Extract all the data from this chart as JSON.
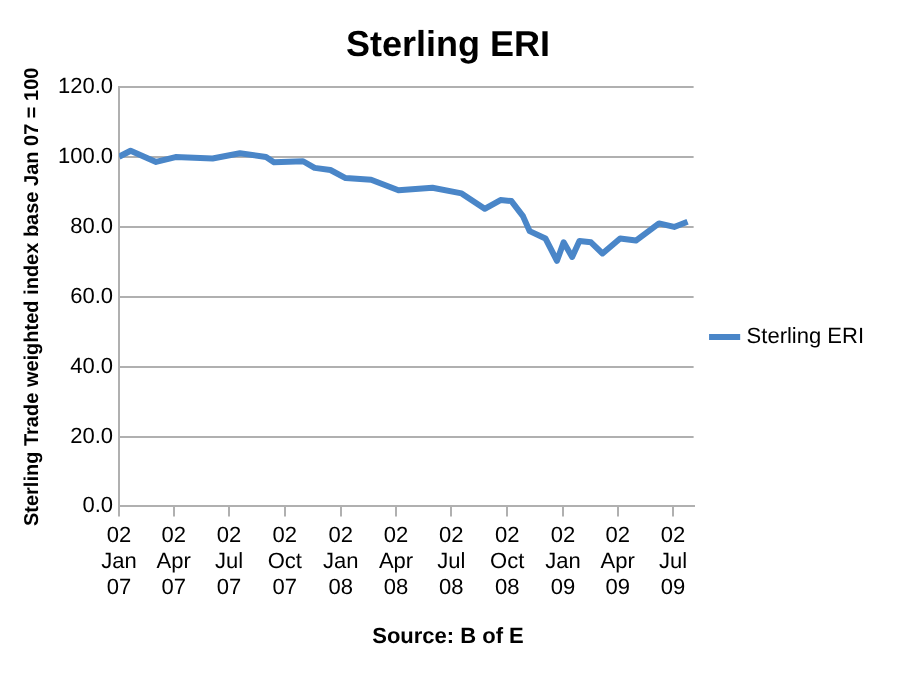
{
  "chart_data": {
    "type": "line",
    "title": "Sterling ERI",
    "ylabel": "Sterling Trade weighted index base Jan 07 = 100",
    "annotations": [
      "Source: B of E"
    ],
    "series": [
      {
        "name": "Sterling ERI",
        "color": "#4a86c8",
        "x": [
          "2007-01-02",
          "2007-01-21",
          "2007-03-04",
          "2007-04-05",
          "2007-06-05",
          "2007-07-20",
          "2007-09-01",
          "2007-09-14",
          "2007-11-01",
          "2007-11-20",
          "2007-12-16",
          "2008-01-10",
          "2008-02-21",
          "2008-04-06",
          "2008-06-01",
          "2008-07-19",
          "2008-08-26",
          "2008-09-21",
          "2008-10-09",
          "2008-10-28",
          "2008-11-08",
          "2008-12-04",
          "2008-12-23",
          "2009-01-03",
          "2009-01-17",
          "2009-01-29",
          "2009-02-17",
          "2009-03-08",
          "2009-04-06",
          "2009-05-02",
          "2009-06-09",
          "2009-07-04",
          "2009-07-26"
        ],
        "values": [
          100.1,
          101.8,
          98.6,
          100,
          99.6,
          101.1,
          100,
          98.5,
          98.8,
          96.9,
          96.3,
          94,
          93.5,
          90.5,
          91.2,
          89.6,
          85.2,
          87.7,
          87.4,
          83.1,
          78.8,
          76.7,
          70.3,
          75.6,
          71.4,
          76,
          75.6,
          72.4,
          76.7,
          76.1,
          81,
          80,
          81.5
        ]
      }
    ],
    "xlim": [
      "2007-01-02",
      "2009-08-05"
    ],
    "xticks": [
      {
        "value": "2007-01-02",
        "label": "02 Jan 07"
      },
      {
        "value": "2007-04-02",
        "label": "02 Apr 07"
      },
      {
        "value": "2007-07-02",
        "label": "02 Jul 07"
      },
      {
        "value": "2007-10-02",
        "label": "02 Oct 07"
      },
      {
        "value": "2008-01-02",
        "label": "02 Jan 08"
      },
      {
        "value": "2008-04-02",
        "label": "02 Apr 08"
      },
      {
        "value": "2008-07-02",
        "label": "02 Jul 08"
      },
      {
        "value": "2008-10-02",
        "label": "02 Oct 08"
      },
      {
        "value": "2009-01-02",
        "label": "02 Jan 09"
      },
      {
        "value": "2009-04-02",
        "label": "02 Apr 09"
      },
      {
        "value": "2009-07-02",
        "label": "02 Jul 09"
      }
    ],
    "ylim": [
      0,
      120
    ],
    "yticks": [
      {
        "value": 0,
        "label": "0.0"
      },
      {
        "value": 20,
        "label": "20.0"
      },
      {
        "value": 40,
        "label": "40.0"
      },
      {
        "value": 60,
        "label": "60.0"
      },
      {
        "value": 80,
        "label": "80.0"
      },
      {
        "value": 100,
        "label": "100.0"
      },
      {
        "value": 120,
        "label": "120.0"
      }
    ],
    "grid": "y",
    "legend": "right",
    "marker": "none",
    "line_style": "solid"
  }
}
